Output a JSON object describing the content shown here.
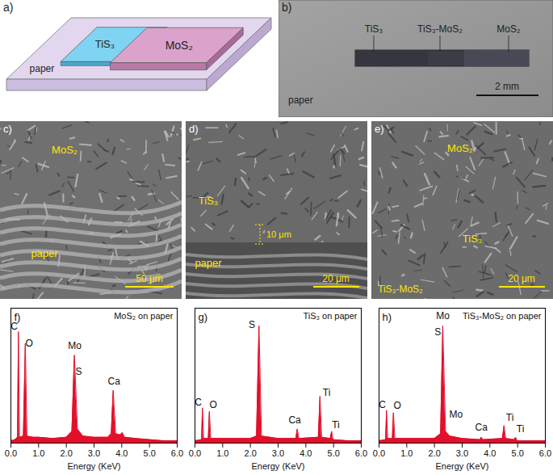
{
  "figure": {
    "a": {
      "panel": "a)",
      "paper": "paper",
      "left": "TiS₃",
      "right": "MoS₂"
    },
    "b": {
      "panel": "b)",
      "labels": [
        "TiS₃",
        "TiS₃-MoS₂",
        "MoS₂"
      ],
      "substrate": "paper",
      "scale_bar": "2 mm"
    },
    "c": {
      "panel": "c)",
      "texts": [
        "MoS₂",
        "paper"
      ],
      "scale_bar": "50 μm"
    },
    "d": {
      "panel": "d)",
      "texts": [
        "TiS₃",
        "paper"
      ],
      "thickness": "10 μm",
      "scale_bar": "20 μm"
    },
    "e": {
      "panel": "e)",
      "texts": [
        "MoS₂",
        "TiS₃",
        "TiS₃-MoS₂"
      ],
      "scale_bar": "20 μm"
    }
  },
  "chart_data": [
    {
      "type": "area",
      "panel": "f)",
      "title": "MoS₂ on paper",
      "x_label": "Energy (KeV)",
      "xlim": [
        0,
        6
      ],
      "xticks": [
        0,
        1,
        2,
        3,
        4,
        5,
        6
      ],
      "ylim": [
        0,
        115
      ],
      "tick_labels": "x",
      "color": "#e3102b",
      "x": [
        0,
        0.15,
        0.24,
        0.27,
        0.31,
        0.45,
        0.52,
        0.58,
        0.8,
        1.0,
        1.5,
        2.0,
        2.2,
        2.29,
        2.4,
        2.6,
        3.0,
        3.5,
        3.62,
        3.69,
        3.78,
        3.95,
        4.02,
        4.1,
        4.5,
        5.0,
        5.5,
        6.0
      ],
      "values": [
        2,
        3,
        5,
        95,
        5,
        6,
        85,
        6,
        5,
        5,
        4,
        5,
        10,
        75,
        12,
        6,
        5,
        5,
        8,
        45,
        8,
        7,
        9,
        5,
        4,
        3,
        2,
        2
      ],
      "annotations": [
        {
          "text": "C",
          "x": 0.12,
          "y": 97
        },
        {
          "text": "O",
          "x": 0.66,
          "y": 82
        },
        {
          "text": "Mo",
          "x": 2.3,
          "y": 80
        },
        {
          "text": "S",
          "x": 2.45,
          "y": 58
        },
        {
          "text": "Ca",
          "x": 3.72,
          "y": 50
        }
      ]
    },
    {
      "type": "area",
      "panel": "g)",
      "title": "TiS₃ on paper",
      "x_label": "Energy (KeV)",
      "xlim": [
        0,
        6
      ],
      "xticks": [
        0,
        1,
        2,
        3,
        4,
        5,
        6
      ],
      "ylim": [
        0,
        115
      ],
      "tick_labels": "x",
      "color": "#e3102b",
      "x": [
        0,
        0.24,
        0.27,
        0.31,
        0.48,
        0.52,
        0.57,
        1.0,
        2.0,
        2.22,
        2.31,
        2.4,
        3.0,
        3.64,
        3.69,
        3.75,
        4.45,
        4.51,
        4.57,
        4.88,
        4.93,
        4.98,
        5.5,
        6.0
      ],
      "values": [
        2,
        3,
        30,
        4,
        4,
        27,
        4,
        4,
        4,
        6,
        100,
        6,
        4,
        4,
        12,
        4,
        5,
        40,
        5,
        4,
        10,
        3,
        2,
        2
      ],
      "annotations": [
        {
          "text": "C",
          "x": 0.12,
          "y": 32
        },
        {
          "text": "O",
          "x": 0.66,
          "y": 30
        },
        {
          "text": "S",
          "x": 2.05,
          "y": 98
        },
        {
          "text": "Ca",
          "x": 3.6,
          "y": 17
        },
        {
          "text": "Ti",
          "x": 4.75,
          "y": 40
        },
        {
          "text": "Ti",
          "x": 5.08,
          "y": 13
        }
      ]
    },
    {
      "type": "area",
      "panel": "h)",
      "title": "TiS₃-MoS₂ on paper",
      "x_label": "Energy (KeV)",
      "xlim": [
        0,
        6
      ],
      "xticks": [
        0,
        1,
        2,
        3,
        4,
        5,
        6
      ],
      "ylim": [
        0,
        115
      ],
      "tick_labels": "x",
      "color": "#e3102b",
      "x": [
        0,
        0.24,
        0.27,
        0.31,
        0.48,
        0.52,
        0.57,
        1.0,
        2.0,
        2.22,
        2.3,
        2.4,
        2.55,
        3.0,
        3.64,
        3.69,
        3.75,
        4.45,
        4.51,
        4.57,
        4.88,
        4.93,
        4.98,
        5.5,
        6.0
      ],
      "values": [
        2,
        3,
        28,
        4,
        4,
        26,
        4,
        4,
        4,
        8,
        100,
        10,
        6,
        4,
        3,
        5,
        3,
        4,
        15,
        4,
        3,
        5,
        2,
        2,
        2
      ],
      "annotations": [
        {
          "text": "C",
          "x": 0.12,
          "y": 30
        },
        {
          "text": "O",
          "x": 0.66,
          "y": 29
        },
        {
          "text": "Mo",
          "x": 2.3,
          "y": 106
        },
        {
          "text": "S",
          "x": 2.12,
          "y": 92
        },
        {
          "text": "Mo",
          "x": 2.78,
          "y": 22
        },
        {
          "text": "Ca",
          "x": 3.69,
          "y": 11
        },
        {
          "text": "Ti",
          "x": 4.72,
          "y": 19
        },
        {
          "text": "Ti",
          "x": 5.1,
          "y": 9
        }
      ]
    }
  ]
}
